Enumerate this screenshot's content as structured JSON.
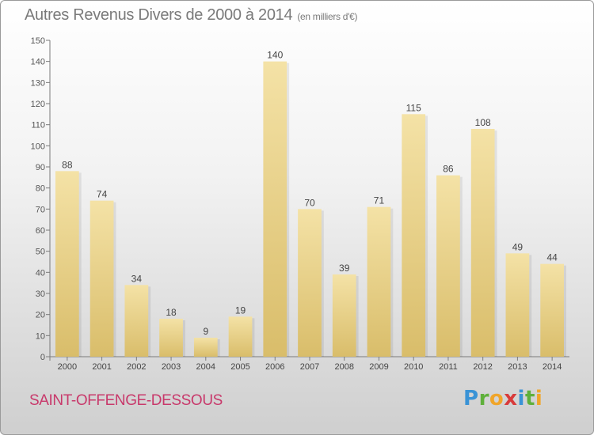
{
  "chart_data": {
    "type": "bar",
    "title": "Autres Revenus Divers de 2000 à 2014",
    "subtitle": "(en milliers d'€)",
    "categories": [
      "2000",
      "2001",
      "2002",
      "2003",
      "2004",
      "2005",
      "2006",
      "2007",
      "2008",
      "2009",
      "2010",
      "2011",
      "2012",
      "2013",
      "2014"
    ],
    "values": [
      88,
      74,
      34,
      18,
      9,
      19,
      140,
      70,
      39,
      71,
      115,
      86,
      108,
      49,
      44
    ],
    "ylim": [
      0,
      150
    ],
    "yticks": [
      0,
      10,
      20,
      30,
      40,
      50,
      60,
      70,
      80,
      90,
      100,
      110,
      120,
      130,
      140,
      150
    ],
    "xlabel": "",
    "ylabel": "",
    "grid": false,
    "bar_color": "#e8cf8a",
    "bar_color_top": "#f4e2a6"
  },
  "footer": {
    "place": "SAINT-OFFENGE-DESSOUS",
    "logo": "Proxiti",
    "place_color": "#c8396b"
  }
}
